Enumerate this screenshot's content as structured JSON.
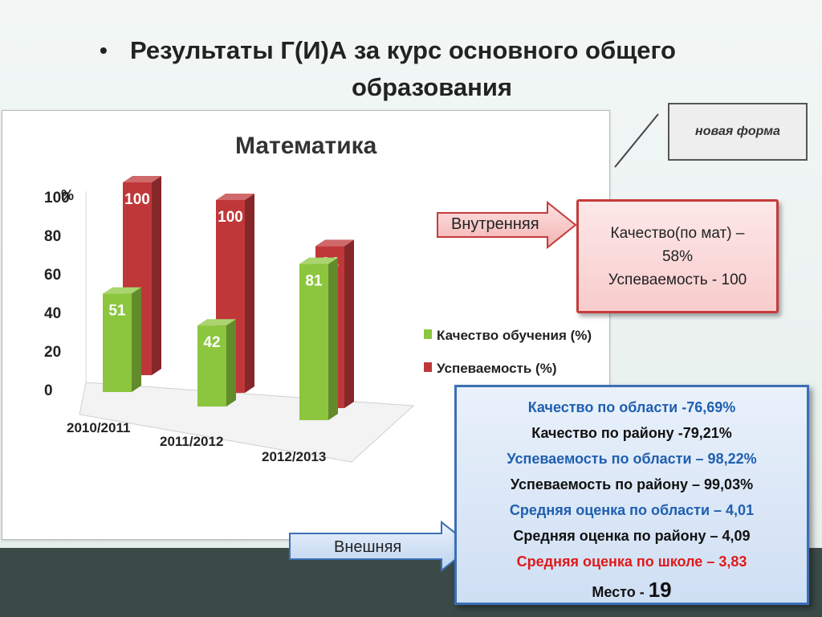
{
  "slide": {
    "bullet": "•",
    "title_line1": "Результаты  Г(И)А  за курс  основного общего",
    "title_line2": "образования"
  },
  "note": {
    "text": "новая форма"
  },
  "internal": {
    "label": "Внутренняя",
    "lines": [
      "Качество(по мат) –",
      "58%",
      "Успеваемость - 100"
    ]
  },
  "external": {
    "label": "Внешняя",
    "lines": [
      {
        "text": "Качество по области -76,69%",
        "color": "#1f5fb0"
      },
      {
        "text": "Качество по району -79,21%",
        "color": "#111111"
      },
      {
        "text": "Успеваемость по области – 98,22%",
        "color": "#1f5fb0"
      },
      {
        "text": "Успеваемость по району – 99,03%",
        "color": "#111111"
      },
      {
        "text": "Средняя оценка по области – 4,01",
        "color": "#1f5fb0"
      },
      {
        "text": "Средняя оценка по району – 4,09",
        "color": "#111111"
      },
      {
        "text": "Средняя оценка по школе – 3,83",
        "color": "#e01a1a"
      }
    ],
    "place_label": "Место - ",
    "place_value": "19"
  },
  "colors": {
    "quality": "#8cc63e",
    "success": "#c0373a",
    "internal_border": "#c63b3b",
    "external_border": "#3c6fb6"
  },
  "chart_data": {
    "type": "bar",
    "title": "Математика",
    "ylabel": "%",
    "xlabel": "",
    "categories": [
      "2010/2011",
      "2011/2012",
      "2012/2013"
    ],
    "series": [
      {
        "name": "Качество обучения (%)",
        "values": [
          51,
          42,
          81
        ]
      },
      {
        "name": "Успеваемость (%)",
        "values": [
          100,
          100,
          84
        ]
      }
    ],
    "y_ticks": [
      0,
      20,
      40,
      60,
      80,
      100
    ],
    "ylim": [
      0,
      100
    ],
    "grid": false,
    "legend": "right",
    "data_labels": true
  }
}
